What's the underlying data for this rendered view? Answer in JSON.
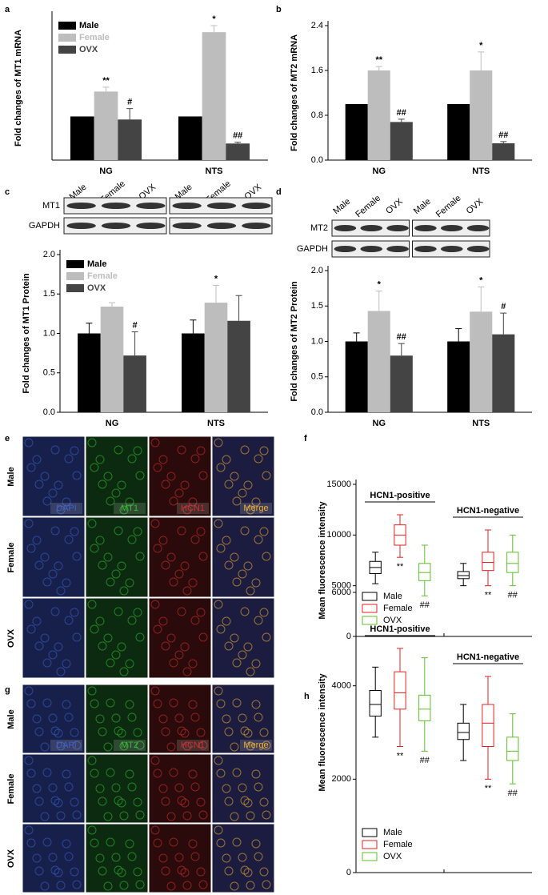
{
  "panel_labels": [
    "a",
    "b",
    "c",
    "d",
    "e",
    "f",
    "g",
    "h"
  ],
  "blots": [
    {
      "lanes": [
        "Male",
        "Female",
        "OVX",
        "Male",
        "Female",
        "OVX"
      ],
      "rows": [
        "MT1",
        "GAPDH"
      ]
    },
    {
      "lanes": [
        "Male",
        "Female",
        "OVX",
        "Male",
        "Female",
        "OVX"
      ],
      "rows": [
        "MT2",
        "GAPDH"
      ]
    }
  ],
  "micrographs": [
    {
      "rows": [
        "Male",
        "Female",
        "OVX"
      ],
      "channels": [
        "DAPI",
        "MT1",
        "HCN1",
        "Merge"
      ]
    },
    {
      "rows": [
        "Male",
        "Female",
        "OVX"
      ],
      "channels": [
        "DAPI",
        "MT2",
        "HCN1",
        "Merge"
      ]
    }
  ],
  "chart_data": [
    {
      "type": "bar",
      "y_label": "Fold changes of MT1 mRNA",
      "categories": [
        "NG",
        "NTS"
      ],
      "ylim": [
        0,
        3.3
      ],
      "legend": "upper left",
      "series": [
        {
          "name": "Male",
          "color": "#000000",
          "values": [
            1,
            1
          ]
        },
        {
          "name": "Female",
          "color": "#bdbdbd",
          "values": [
            1.57,
            2.93
          ],
          "errors": [
            0.1,
            0.15
          ],
          "annotations": [
            "**",
            "*"
          ]
        },
        {
          "name": "OVX",
          "color": "#444444",
          "values": [
            0.93,
            0.38
          ],
          "errors": [
            0.25,
            0.03
          ],
          "annotations": [
            "#",
            "##"
          ]
        }
      ]
    },
    {
      "type": "bar",
      "y_label": "Fold changes of MT2 mRNA",
      "categories": [
        "NG",
        "NTS"
      ],
      "ylim": [
        0,
        2.4
      ],
      "yticks": [
        {
          "value": 0,
          "label": "0.0"
        },
        0.8,
        1.6,
        2.4
      ],
      "series": [
        {
          "name": "Male",
          "color": "#000000",
          "values": [
            1,
            1
          ]
        },
        {
          "name": "Female",
          "color": "#bdbdbd",
          "values": [
            1.6,
            1.6
          ],
          "errors": [
            0.07,
            0.33
          ],
          "annotations": [
            "**",
            "*"
          ]
        },
        {
          "name": "OVX",
          "color": "#444444",
          "values": [
            0.68,
            0.3
          ],
          "errors": [
            0.05,
            0.03
          ],
          "annotations": [
            "##",
            "##"
          ]
        }
      ]
    },
    {
      "type": "bar",
      "y_label": "Fold changes of MT1 Protein",
      "categories": [
        "NG",
        "NTS"
      ],
      "ylim": [
        0,
        2
      ],
      "legend": "upper left",
      "yticks": [
        {
          "value": 0,
          "label": "0.0"
        },
        0.5,
        {
          "value": 1,
          "label": "1.0"
        },
        1.5,
        {
          "value": 2,
          "label": "2.0"
        }
      ],
      "series": [
        {
          "name": "Male",
          "color": "#000000",
          "values": [
            1,
            1
          ],
          "errors": [
            0.13,
            0.17
          ]
        },
        {
          "name": "Female",
          "color": "#bdbdbd",
          "values": [
            1.34,
            1.39
          ],
          "errors": [
            0.05,
            0.22
          ],
          "annotations": [
            null,
            "*"
          ]
        },
        {
          "name": "OVX",
          "color": "#444444",
          "values": [
            0.72,
            1.16
          ],
          "errors": [
            0.3,
            0.32
          ],
          "annotations": [
            "#",
            null
          ]
        }
      ]
    },
    {
      "type": "bar",
      "y_label": "Fold changes of MT2 Protein",
      "categories": [
        "NG",
        "NTS"
      ],
      "ylim": [
        0,
        2
      ],
      "yticks": [
        {
          "value": 0,
          "label": "0.0"
        },
        0.5,
        {
          "value": 1,
          "label": "1.0"
        },
        1.5,
        {
          "value": 2,
          "label": "2.0"
        }
      ],
      "series": [
        {
          "name": "Male",
          "color": "#000000",
          "values": [
            1,
            1
          ],
          "errors": [
            0.12,
            0.18
          ]
        },
        {
          "name": "Female",
          "color": "#bdbdbd",
          "values": [
            1.43,
            1.42
          ],
          "errors": [
            0.28,
            0.35
          ],
          "annotations": [
            "*",
            "*"
          ]
        },
        {
          "name": "OVX",
          "color": "#444444",
          "values": [
            0.8,
            1.1
          ],
          "errors": [
            0.17,
            0.3
          ],
          "annotations": [
            "##",
            "#"
          ]
        }
      ]
    },
    {
      "type": "box",
      "y_label": "Mean fluorescence intensity",
      "groups": [
        "HCN1-positive",
        "HCN1-negative"
      ],
      "ylim": [
        0,
        15000
      ],
      "yticks": [
        0,
        5000,
        10000,
        15000
      ],
      "legend": "lower left",
      "series": [
        {
          "name": "Male",
          "color": "#000000",
          "boxes": [
            {
              "whislo": 5200,
              "q1": 6200,
              "med": 6800,
              "q3": 7400,
              "whishi": 8300
            },
            {
              "whislo": 5000,
              "q1": 5700,
              "med": 6000,
              "q3": 6400,
              "whishi": 7200
            }
          ]
        },
        {
          "name": "Female",
          "color": "#e02020",
          "annotations": [
            "**",
            "**"
          ],
          "boxes": [
            {
              "whislo": 7800,
              "q1": 9000,
              "med": 10000,
              "q3": 11000,
              "whishi": 12000
            },
            {
              "whislo": 5000,
              "q1": 6500,
              "med": 7300,
              "q3": 8300,
              "whishi": 10500
            }
          ]
        },
        {
          "name": "OVX",
          "color": "#5cc02a",
          "annotations": [
            "##",
            "##"
          ],
          "boxes": [
            {
              "whislo": 4000,
              "q1": 5500,
              "med": 6300,
              "q3": 7200,
              "whishi": 9000
            },
            {
              "whislo": 5000,
              "q1": 6300,
              "med": 7200,
              "q3": 8300,
              "whishi": 10000
            }
          ]
        }
      ]
    },
    {
      "type": "box",
      "y_label": "Mean fluorescence intensity",
      "groups": [
        "HCN1-positive",
        "HCN1-negative"
      ],
      "ylim": [
        0,
        6000
      ],
      "yticks": [
        0,
        2000,
        4000,
        6000
      ],
      "legend": "lower left",
      "series": [
        {
          "name": "Male",
          "color": "#000000",
          "boxes": [
            {
              "whislo": 2900,
              "q1": 3350,
              "med": 3600,
              "q3": 3900,
              "whishi": 4400
            },
            {
              "whislo": 2400,
              "q1": 2850,
              "med": 3000,
              "q3": 3200,
              "whishi": 3600
            }
          ]
        },
        {
          "name": "Female",
          "color": "#e02020",
          "annotations": [
            "**",
            "**"
          ],
          "boxes": [
            {
              "whislo": 2700,
              "q1": 3500,
              "med": 3850,
              "q3": 4300,
              "whishi": 4800
            },
            {
              "whislo": 2000,
              "q1": 2700,
              "med": 3200,
              "q3": 3600,
              "whishi": 4200
            }
          ]
        },
        {
          "name": "OVX",
          "color": "#5cc02a",
          "annotations": [
            "##",
            "##"
          ],
          "boxes": [
            {
              "whislo": 2600,
              "q1": 3250,
              "med": 3500,
              "q3": 3800,
              "whishi": 4600
            },
            {
              "whislo": 1900,
              "q1": 2400,
              "med": 2600,
              "q3": 2900,
              "whishi": 3400
            }
          ]
        }
      ]
    }
  ]
}
